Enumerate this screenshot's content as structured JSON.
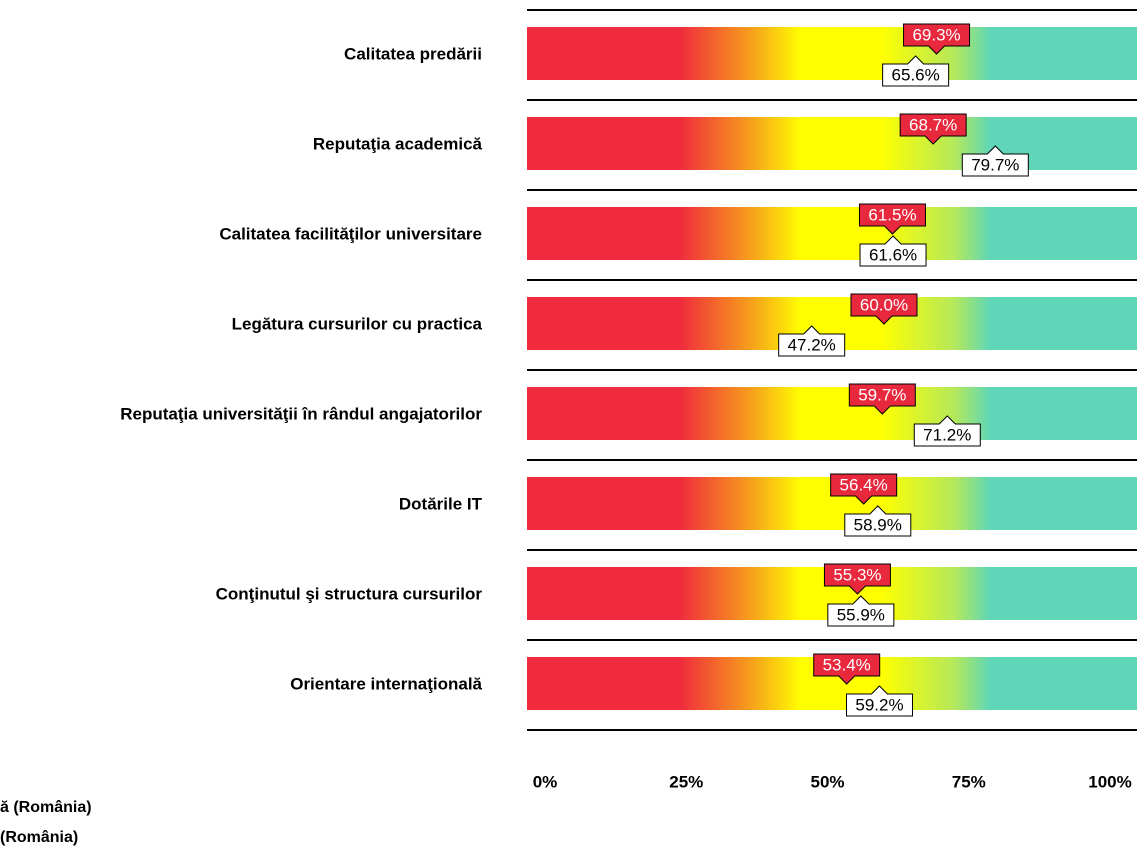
{
  "chart_data": {
    "type": "gauge_bar",
    "categories": [
      "Calitatea predării",
      "Reputaţia academică",
      "Calitatea facilităţilor universitare",
      "Legătura cursurilor cu practica",
      "Reputaţia universităţii în rândul angajatorilor",
      "Dotările IT",
      "Conţinutul şi structura cursurilor",
      "Orientare internaţională"
    ],
    "series": [
      {
        "name": "ă (România)",
        "color": "#e8283c",
        "values": [
          69.3,
          68.7,
          61.5,
          60.0,
          59.7,
          56.4,
          55.3,
          53.4
        ],
        "value_labels": [
          "69.3%",
          "68.7%",
          "61.5%",
          "60.0%",
          "59.7%",
          "56.4%",
          "55.3%",
          "53.4%"
        ]
      },
      {
        "name": "(România)",
        "color": "#ffffff",
        "values": [
          65.6,
          79.7,
          61.6,
          47.2,
          71.2,
          58.9,
          55.9,
          59.2
        ],
        "value_labels": [
          "65.6%",
          "79.7%",
          "61.6%",
          "47.2%",
          "71.2%",
          "58.9%",
          "55.9%",
          "59.2%"
        ]
      }
    ],
    "xlim": [
      0,
      100
    ],
    "xticks": [
      {
        "value": 0,
        "label": "0%"
      },
      {
        "value": 25,
        "label": "25%"
      },
      {
        "value": 50,
        "label": "50%"
      },
      {
        "value": 75,
        "label": "75%"
      },
      {
        "value": 100,
        "label": "100%"
      }
    ]
  }
}
